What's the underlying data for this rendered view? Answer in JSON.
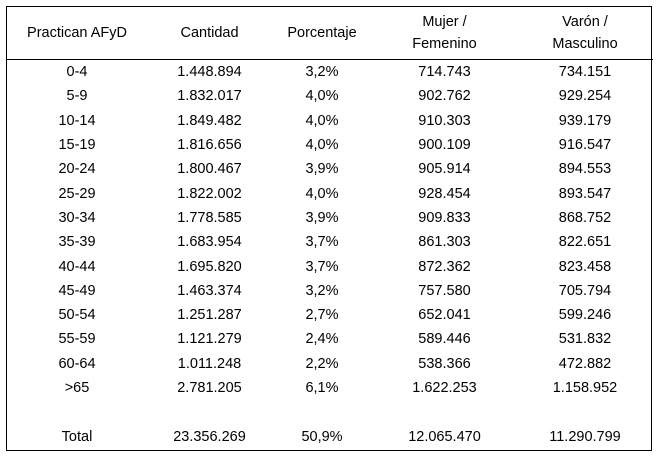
{
  "headers": {
    "group": "Practican AFyD",
    "count": "Cantidad",
    "percent": "Porcentaje",
    "female_line1": "Mujer /",
    "female_line2": "Femenino",
    "male_line1": "Varón /",
    "male_line2": "Masculino"
  },
  "rows": [
    {
      "group": "0-4",
      "count": "1.448.894",
      "percent": "3,2%",
      "female": "714.743",
      "male": "734.151"
    },
    {
      "group": "5-9",
      "count": "1.832.017",
      "percent": "4,0%",
      "female": "902.762",
      "male": "929.254"
    },
    {
      "group": "10-14",
      "count": "1.849.482",
      "percent": "4,0%",
      "female": "910.303",
      "male": "939.179"
    },
    {
      "group": "15-19",
      "count": "1.816.656",
      "percent": "4,0%",
      "female": "900.109",
      "male": "916.547"
    },
    {
      "group": "20-24",
      "count": "1.800.467",
      "percent": "3,9%",
      "female": "905.914",
      "male": "894.553"
    },
    {
      "group": "25-29",
      "count": "1.822.002",
      "percent": "4,0%",
      "female": "928.454",
      "male": "893.547"
    },
    {
      "group": "30-34",
      "count": "1.778.585",
      "percent": "3,9%",
      "female": "909.833",
      "male": "868.752"
    },
    {
      "group": "35-39",
      "count": "1.683.954",
      "percent": "3,7%",
      "female": "861.303",
      "male": "822.651"
    },
    {
      "group": "40-44",
      "count": "1.695.820",
      "percent": "3,7%",
      "female": "872.362",
      "male": "823.458"
    },
    {
      "group": "45-49",
      "count": "1.463.374",
      "percent": "3,2%",
      "female": "757.580",
      "male": "705.794"
    },
    {
      "group": "50-54",
      "count": "1.251.287",
      "percent": "2,7%",
      "female": "652.041",
      "male": "599.246"
    },
    {
      "group": "55-59",
      "count": "1.121.279",
      "percent": "2,4%",
      "female": "589.446",
      "male": "531.832"
    },
    {
      "group": "60-64",
      "count": "1.011.248",
      "percent": "2,2%",
      "female": "538.366",
      "male": "472.882"
    },
    {
      "group": ">65",
      "count": "2.781.205",
      "percent": "6,1%",
      "female": "1.622.253",
      "male": "1.158.952"
    }
  ],
  "total": {
    "group": "Total",
    "count": "23.356.269",
    "percent": "50,9%",
    "female": "12.065.470",
    "male": "11.290.799"
  }
}
